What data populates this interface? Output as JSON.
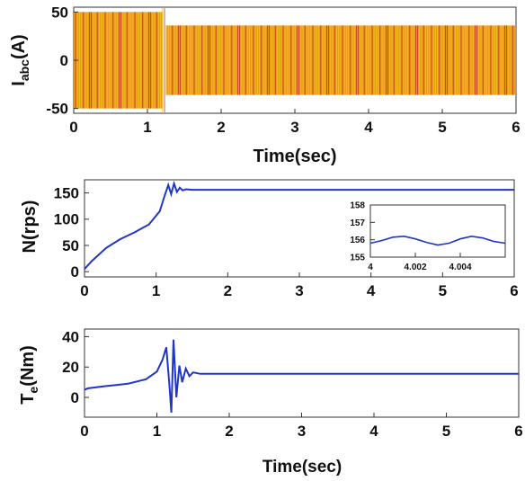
{
  "chart_data": [
    {
      "type": "line",
      "ylabel": "I",
      "ylabel_sub": "abc",
      "ylabel_suffix": "(A)",
      "xlabel": "Time(sec)",
      "xlim": [
        0,
        6
      ],
      "ylim": [
        -55,
        55
      ],
      "xticks": [
        "0",
        "1",
        "2",
        "3",
        "4",
        "5",
        "6"
      ],
      "yticks": [
        "-50",
        "0",
        "50"
      ],
      "grid": false,
      "series": [
        {
          "values_description": "three-phase oscillation",
          "envelope": [
            [
              0,
              50
            ],
            [
              1.2,
              50
            ],
            [
              1.25,
              38
            ],
            [
              1.4,
              36
            ],
            [
              6,
              36
            ]
          ],
          "color": "#e8a218"
        }
      ]
    },
    {
      "type": "line",
      "ylabel": "N(rps)",
      "xlabel": "",
      "xlim": [
        0,
        6
      ],
      "ylim": [
        -10,
        175
      ],
      "xticks": [
        "0",
        "1",
        "2",
        "3",
        "4",
        "5",
        "6"
      ],
      "yticks": [
        "0",
        "50",
        "100",
        "150"
      ],
      "grid": false,
      "series": [
        {
          "x": [
            0,
            0.1,
            0.3,
            0.5,
            0.7,
            0.9,
            1.05,
            1.12,
            1.17,
            1.21,
            1.25,
            1.29,
            1.33,
            1.37,
            1.42,
            1.5,
            6
          ],
          "y": [
            5,
            20,
            45,
            62,
            75,
            90,
            115,
            145,
            165,
            148,
            168,
            152,
            160,
            155,
            157,
            156,
            156
          ],
          "color": "#1f35c8"
        }
      ],
      "inset": {
        "xlim": [
          4,
          4.006
        ],
        "ylim": [
          155,
          158
        ],
        "xticks": [
          "4",
          "4.002",
          "4.004"
        ],
        "yticks": [
          "155",
          "156",
          "157",
          "158"
        ],
        "x": [
          4,
          4.0005,
          4.001,
          4.0015,
          4.002,
          4.0025,
          4.003,
          4.0035,
          4.004,
          4.0045,
          4.005,
          4.0055,
          4.006
        ],
        "y": [
          155.8,
          155.95,
          156.15,
          156.2,
          156.05,
          155.85,
          155.7,
          155.8,
          156.05,
          156.2,
          156.1,
          155.9,
          155.8
        ]
      }
    },
    {
      "type": "line",
      "ylabel": "T",
      "ylabel_sub": "e",
      "ylabel_suffix": "(Nm)",
      "xlabel": "Time(sec)",
      "xlim": [
        0,
        6
      ],
      "ylim": [
        -13,
        45
      ],
      "xticks": [
        "0",
        "1",
        "2",
        "3",
        "4",
        "5",
        "6"
      ],
      "yticks": [
        "0",
        "20",
        "40"
      ],
      "grid": false,
      "series": [
        {
          "x": [
            0,
            0.05,
            0.3,
            0.6,
            0.85,
            1.0,
            1.08,
            1.13,
            1.17,
            1.2,
            1.23,
            1.27,
            1.31,
            1.35,
            1.4,
            1.45,
            1.5,
            1.6,
            6
          ],
          "y": [
            5,
            6,
            7.5,
            9,
            12,
            17,
            25,
            33,
            10,
            -10,
            38,
            0,
            21,
            10,
            19,
            14,
            16.5,
            15.5,
            15.5
          ],
          "color": "#1f35c8"
        }
      ]
    }
  ]
}
